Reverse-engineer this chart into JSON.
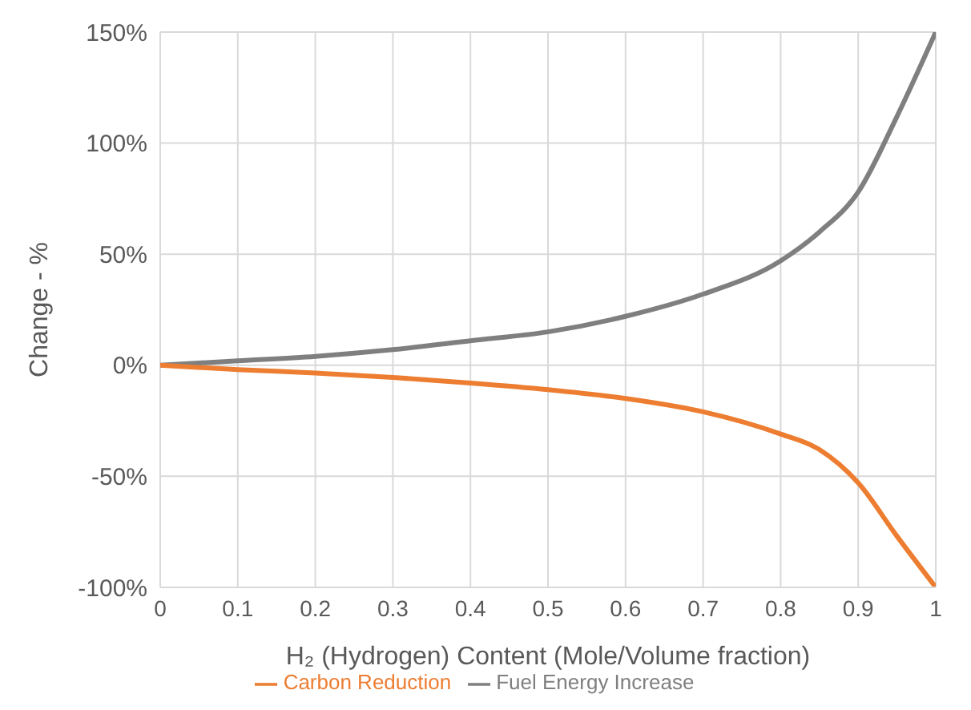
{
  "chart_data": {
    "type": "line",
    "xlabel": "H₂ (Hydrogen) Content (Mole/Volume fraction)",
    "ylabel": "Change - %",
    "x": [
      0,
      0.1,
      0.2,
      0.3,
      0.4,
      0.5,
      0.6,
      0.7,
      0.8,
      0.85,
      0.9,
      0.95,
      1
    ],
    "series": [
      {
        "name": "Fuel Energy Increase",
        "color": "#7f7f7f",
        "values": [
          0,
          2,
          4,
          7,
          11,
          15,
          22,
          32,
          47,
          60,
          78,
          112,
          150
        ]
      },
      {
        "name": "Carbon Reduction",
        "color": "#ed7d31",
        "values": [
          0,
          -2,
          -3.5,
          -5.5,
          -8,
          -11,
          -15,
          -21,
          -31,
          -38,
          -53,
          -77,
          -100
        ]
      }
    ],
    "xlim": [
      0,
      1
    ],
    "xticks": [
      0,
      0.1,
      0.2,
      0.3,
      0.4,
      0.5,
      0.6,
      0.7,
      0.8,
      0.9,
      1
    ],
    "ylim": [
      -100,
      150
    ],
    "yticks": [
      {
        "value": -100,
        "label": "-100%"
      },
      {
        "value": -50,
        "label": "-50%"
      },
      {
        "value": 0,
        "label": "0%"
      },
      {
        "value": 50,
        "label": "50%"
      },
      {
        "value": 100,
        "label": "100%"
      },
      {
        "value": 150,
        "label": "150%"
      }
    ],
    "grid": true,
    "legend": "bottom",
    "marker": "none",
    "line_style": "solid"
  }
}
